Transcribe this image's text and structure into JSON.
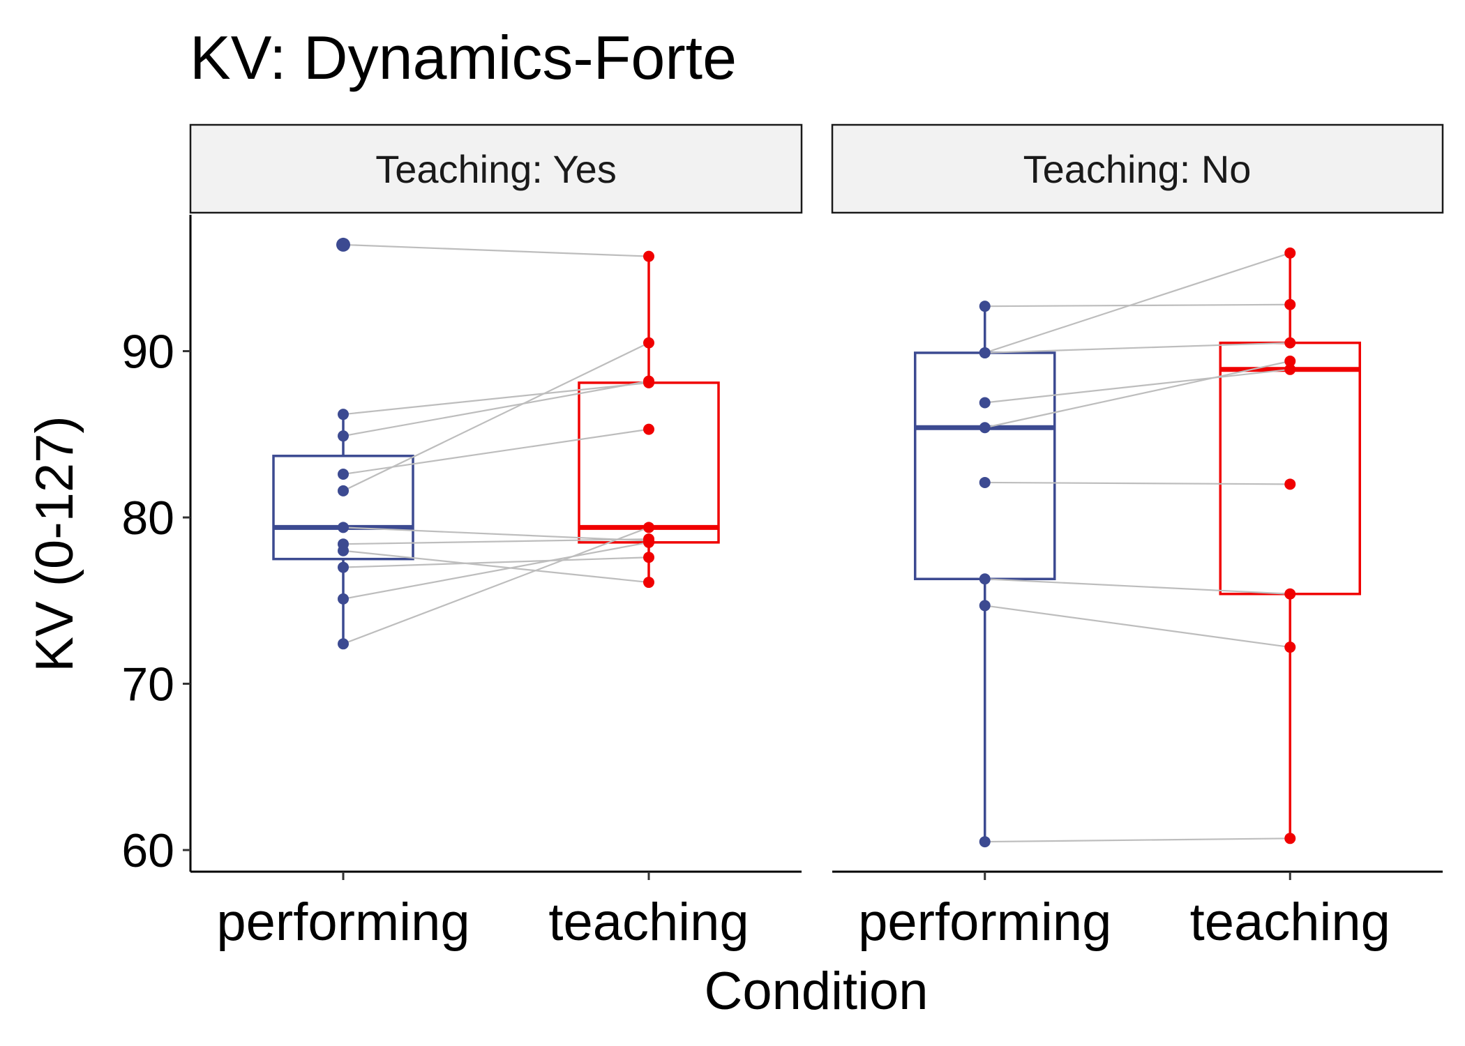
{
  "chart_data": {
    "type": "box",
    "title": "KV: Dynamics-Forte",
    "xlabel": "Condition",
    "ylabel": "KV (0-127)",
    "categories": [
      "performing",
      "teaching"
    ],
    "ylim": [
      58.7,
      98.2
    ],
    "yticks": [
      60,
      70,
      80,
      90
    ],
    "colors": {
      "performing": "#3c4a91",
      "teaching": "#f00000",
      "pair_lines": "#bdbdbd",
      "strip_fill": "#f2f2f2"
    },
    "panels": [
      {
        "label": "Teaching: Yes",
        "boxes": {
          "performing": {
            "q1": 77.5,
            "median": 79.4,
            "q3": 83.7,
            "whisker_low": 72.4,
            "whisker_high": 86.2,
            "outliers": [
              96.4
            ]
          },
          "teaching": {
            "q1": 78.5,
            "median": 79.4,
            "q3": 88.1,
            "whisker_low": 76.1,
            "whisker_high": 95.7,
            "outliers": []
          }
        },
        "pairs": [
          {
            "performing": 96.4,
            "teaching": 95.7
          },
          {
            "performing": 86.2,
            "teaching": 88.1
          },
          {
            "performing": 84.9,
            "teaching": 88.2
          },
          {
            "performing": 82.6,
            "teaching": 85.3
          },
          {
            "performing": 81.6,
            "teaching": 90.5
          },
          {
            "performing": 79.4,
            "teaching": 78.6
          },
          {
            "performing": 78.4,
            "teaching": 78.7
          },
          {
            "performing": 78.0,
            "teaching": 76.1
          },
          {
            "performing": 77.0,
            "teaching": 77.6
          },
          {
            "performing": 75.1,
            "teaching": 78.5
          },
          {
            "performing": 72.4,
            "teaching": 79.4
          }
        ]
      },
      {
        "label": "Teaching: No",
        "boxes": {
          "performing": {
            "q1": 76.3,
            "median": 85.4,
            "q3": 89.9,
            "whisker_low": 60.5,
            "whisker_high": 92.7,
            "outliers": []
          },
          "teaching": {
            "q1": 75.4,
            "median": 88.9,
            "q3": 90.5,
            "whisker_low": 60.7,
            "whisker_high": 95.9,
            "outliers": []
          }
        },
        "pairs": [
          {
            "performing": 92.7,
            "teaching": 92.8
          },
          {
            "performing": 89.9,
            "teaching": 95.9
          },
          {
            "performing": 89.9,
            "teaching": 90.5
          },
          {
            "performing": 86.9,
            "teaching": 88.9
          },
          {
            "performing": 85.4,
            "teaching": 89.4
          },
          {
            "performing": 82.1,
            "teaching": 82.0
          },
          {
            "performing": 76.3,
            "teaching": 75.4
          },
          {
            "performing": 74.7,
            "teaching": 72.2
          },
          {
            "performing": 60.5,
            "teaching": 60.7
          }
        ]
      }
    ]
  }
}
